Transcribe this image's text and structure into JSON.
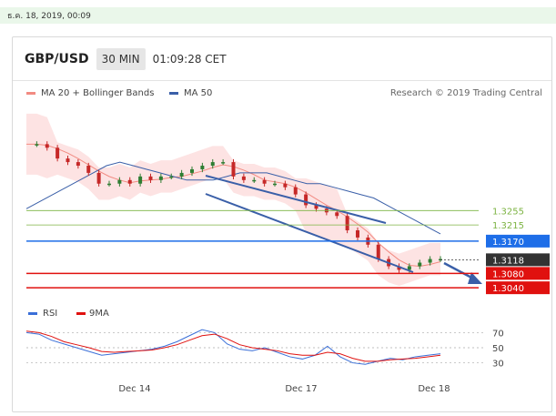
{
  "timestamp": "ธ.ค. 18, 2019, 00:09",
  "header": {
    "pair": "GBP/USD",
    "timeframe": "30 MIN",
    "clock": "01:09:28 CET"
  },
  "legend": {
    "ma20_label": "MA 20 + Bollinger Bands",
    "ma20_color": "#f28b82",
    "ma50_label": "MA 50",
    "ma50_color": "#3a5fa8"
  },
  "research": "Research © 2019 Trading Central",
  "chart_data": [
    {
      "type": "line",
      "title": "GBP/USD",
      "x_ticks": [
        "Dec 14",
        "Dec 17",
        "Dec 18"
      ],
      "levels": [
        {
          "label": "1.3255",
          "value": 1.3255,
          "kind": "resistance",
          "color": "#7cb342"
        },
        {
          "label": "1.3215",
          "value": 1.3215,
          "kind": "resistance",
          "color": "#7cb342"
        },
        {
          "label": "1.3170",
          "value": 1.317,
          "kind": "pivot",
          "color": "#1e6ee8"
        },
        {
          "label": "1.3118",
          "value": 1.3118,
          "kind": "last-price",
          "color": "#333333"
        },
        {
          "label": "1.3080",
          "value": 1.308,
          "kind": "support",
          "color": "#e0110f"
        },
        {
          "label": "1.3040",
          "value": 1.304,
          "kind": "support",
          "color": "#e0110f"
        }
      ],
      "price_series": [
        1.344,
        1.344,
        1.343,
        1.34,
        1.339,
        1.338,
        1.336,
        1.333,
        1.333,
        1.334,
        1.333,
        1.335,
        1.334,
        1.335,
        1.335,
        1.336,
        1.337,
        1.338,
        1.339,
        1.339,
        1.335,
        1.334,
        1.334,
        1.333,
        1.333,
        1.332,
        1.33,
        1.327,
        1.326,
        1.325,
        1.324,
        1.32,
        1.318,
        1.316,
        1.312,
        1.31,
        1.309,
        1.31,
        1.311,
        1.312,
        1.312
      ],
      "ma50_series": [
        1.326,
        1.328,
        1.33,
        1.332,
        1.334,
        1.336,
        1.338,
        1.339,
        1.338,
        1.337,
        1.336,
        1.335,
        1.334,
        1.334,
        1.334,
        1.335,
        1.336,
        1.336,
        1.336,
        1.335,
        1.334,
        1.333,
        1.333,
        1.332,
        1.331,
        1.33,
        1.329,
        1.327,
        1.325,
        1.323,
        1.321,
        1.319
      ],
      "ylim": [
        1.3015,
        1.3555
      ]
    },
    {
      "type": "line",
      "title": "RSI",
      "series": [
        {
          "name": "RSI",
          "color": "#3a6fd8",
          "values": [
            70,
            68,
            60,
            55,
            50,
            45,
            40,
            42,
            44,
            46,
            48,
            52,
            58,
            66,
            74,
            70,
            55,
            48,
            46,
            50,
            44,
            38,
            35,
            40,
            52,
            38,
            30,
            28,
            32,
            36,
            34,
            38,
            40,
            42
          ]
        },
        {
          "name": "9MA",
          "color": "#e0110f",
          "values": [
            72,
            70,
            65,
            58,
            54,
            50,
            45,
            44,
            45,
            46,
            47,
            50,
            54,
            60,
            66,
            68,
            62,
            54,
            50,
            48,
            46,
            42,
            40,
            40,
            44,
            42,
            36,
            32,
            32,
            34,
            35,
            36,
            38,
            40
          ]
        }
      ],
      "y_ticks": [
        "70",
        "50",
        "30"
      ],
      "ylim": [
        15,
        85
      ]
    }
  ]
}
